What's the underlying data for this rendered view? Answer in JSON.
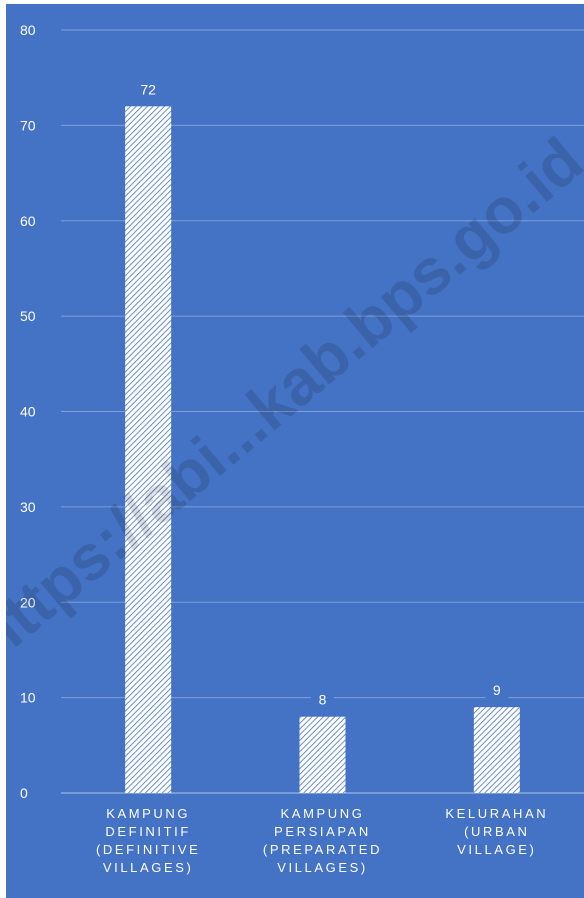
{
  "chart_data": {
    "type": "bar",
    "title": "",
    "xlabel": "",
    "ylabel": "",
    "ylim": [
      0,
      80
    ],
    "yticks": [
      0,
      10,
      20,
      30,
      40,
      50,
      60,
      70,
      80
    ],
    "grid": true,
    "legend": "none",
    "categories": [
      [
        "KAMPUNG",
        "DEFINITIF",
        "(DEFINITIVE",
        "VILLAGES)"
      ],
      [
        "KAMPUNG",
        "PERSIAPAN",
        "(PREPARATED",
        "VILLAGES)"
      ],
      [
        "KELURAHAN",
        "(URBAN",
        "VILLAGE)"
      ]
    ],
    "values": [
      72,
      8,
      9
    ],
    "data_labels": [
      "72",
      "8",
      "9"
    ]
  },
  "watermark": "https://abi...kab.bps.go.id",
  "colors": {
    "background": "#4472c4",
    "bar_fill": "#ffffff",
    "bar_hatch": "#4472c4"
  }
}
